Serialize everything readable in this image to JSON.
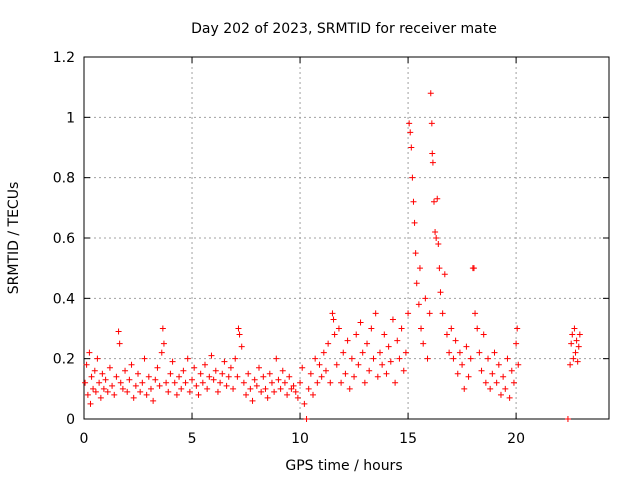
{
  "chart_data": {
    "type": "scatter",
    "title": "Day 202 of 2023, SRMTID for receiver mate",
    "xlabel": "GPS time / hours",
    "ylabel": "SRMTID / TECUs",
    "xlim": [
      0,
      24.3
    ],
    "ylim": [
      0,
      1.2
    ],
    "xticks": [
      0,
      5,
      10,
      15,
      20
    ],
    "yticks": [
      0,
      0.2,
      0.4,
      0.6,
      0.8,
      1,
      1.2
    ],
    "xtick_labels": [
      "0",
      "5",
      "10",
      "15",
      "20"
    ],
    "ytick_labels": [
      "0",
      "0.2",
      "0.4",
      "0.6",
      "0.8",
      "1",
      "1.2"
    ],
    "grid": true,
    "marker": "+",
    "color": "#ff0000",
    "series": [
      {
        "name": "SRMTID",
        "points": [
          [
            0.05,
            0.12
          ],
          [
            0.12,
            0.18
          ],
          [
            0.18,
            0.08
          ],
          [
            0.25,
            0.22
          ],
          [
            0.3,
            0.05
          ],
          [
            0.35,
            0.14
          ],
          [
            0.42,
            0.1
          ],
          [
            0.5,
            0.16
          ],
          [
            0.55,
            0.09
          ],
          [
            0.62,
            0.2
          ],
          [
            0.7,
            0.12
          ],
          [
            0.78,
            0.07
          ],
          [
            0.85,
            0.15
          ],
          [
            0.92,
            0.1
          ],
          [
            1.0,
            0.13
          ],
          [
            1.1,
            0.09
          ],
          [
            1.2,
            0.17
          ],
          [
            1.3,
            0.11
          ],
          [
            1.4,
            0.08
          ],
          [
            1.5,
            0.14
          ],
          [
            1.6,
            0.29
          ],
          [
            1.65,
            0.25
          ],
          [
            1.7,
            0.12
          ],
          [
            1.8,
            0.1
          ],
          [
            1.9,
            0.16
          ],
          [
            2.0,
            0.09
          ],
          [
            2.1,
            0.13
          ],
          [
            2.2,
            0.18
          ],
          [
            2.3,
            0.07
          ],
          [
            2.4,
            0.11
          ],
          [
            2.5,
            0.15
          ],
          [
            2.6,
            0.09
          ],
          [
            2.7,
            0.12
          ],
          [
            2.8,
            0.2
          ],
          [
            2.9,
            0.08
          ],
          [
            3.0,
            0.14
          ],
          [
            3.1,
            0.1
          ],
          [
            3.2,
            0.06
          ],
          [
            3.3,
            0.13
          ],
          [
            3.4,
            0.17
          ],
          [
            3.5,
            0.11
          ],
          [
            3.6,
            0.22
          ],
          [
            3.65,
            0.3
          ],
          [
            3.7,
            0.25
          ],
          [
            3.8,
            0.12
          ],
          [
            3.9,
            0.09
          ],
          [
            4.0,
            0.15
          ],
          [
            4.1,
            0.19
          ],
          [
            4.2,
            0.12
          ],
          [
            4.3,
            0.08
          ],
          [
            4.4,
            0.14
          ],
          [
            4.5,
            0.1
          ],
          [
            4.6,
            0.16
          ],
          [
            4.7,
            0.12
          ],
          [
            4.8,
            0.2
          ],
          [
            4.9,
            0.09
          ],
          [
            5.0,
            0.13
          ],
          [
            5.1,
            0.17
          ],
          [
            5.2,
            0.11
          ],
          [
            5.3,
            0.08
          ],
          [
            5.4,
            0.15
          ],
          [
            5.5,
            0.12
          ],
          [
            5.6,
            0.18
          ],
          [
            5.7,
            0.1
          ],
          [
            5.8,
            0.14
          ],
          [
            5.9,
            0.21
          ],
          [
            6.0,
            0.13
          ],
          [
            6.1,
            0.16
          ],
          [
            6.2,
            0.09
          ],
          [
            6.3,
            0.12
          ],
          [
            6.4,
            0.15
          ],
          [
            6.5,
            0.19
          ],
          [
            6.6,
            0.11
          ],
          [
            6.7,
            0.14
          ],
          [
            6.8,
            0.17
          ],
          [
            6.9,
            0.1
          ],
          [
            7.0,
            0.2
          ],
          [
            7.1,
            0.14
          ],
          [
            7.15,
            0.3
          ],
          [
            7.2,
            0.28
          ],
          [
            7.3,
            0.24
          ],
          [
            7.4,
            0.12
          ],
          [
            7.5,
            0.08
          ],
          [
            7.6,
            0.15
          ],
          [
            7.7,
            0.1
          ],
          [
            7.8,
            0.06
          ],
          [
            7.9,
            0.13
          ],
          [
            8.0,
            0.11
          ],
          [
            8.1,
            0.17
          ],
          [
            8.2,
            0.09
          ],
          [
            8.3,
            0.14
          ],
          [
            8.4,
            0.1
          ],
          [
            8.5,
            0.07
          ],
          [
            8.6,
            0.15
          ],
          [
            8.7,
            0.12
          ],
          [
            8.8,
            0.09
          ],
          [
            8.9,
            0.2
          ],
          [
            9.0,
            0.13
          ],
          [
            9.1,
            0.1
          ],
          [
            9.2,
            0.16
          ],
          [
            9.3,
            0.12
          ],
          [
            9.4,
            0.08
          ],
          [
            9.5,
            0.14
          ],
          [
            9.6,
            0.1
          ],
          [
            9.7,
            0.11
          ],
          [
            9.8,
            0.09
          ],
          [
            9.9,
            0.07
          ],
          [
            10.0,
            0.12
          ],
          [
            10.1,
            0.17
          ],
          [
            10.2,
            0.05
          ],
          [
            10.3,
            0.0
          ],
          [
            10.4,
            0.1
          ],
          [
            10.5,
            0.15
          ],
          [
            10.6,
            0.08
          ],
          [
            10.7,
            0.2
          ],
          [
            10.8,
            0.12
          ],
          [
            10.9,
            0.18
          ],
          [
            11.0,
            0.14
          ],
          [
            11.1,
            0.22
          ],
          [
            11.2,
            0.16
          ],
          [
            11.3,
            0.25
          ],
          [
            11.4,
            0.12
          ],
          [
            11.5,
            0.35
          ],
          [
            11.55,
            0.33
          ],
          [
            11.6,
            0.28
          ],
          [
            11.7,
            0.18
          ],
          [
            11.8,
            0.3
          ],
          [
            11.9,
            0.12
          ],
          [
            12.0,
            0.22
          ],
          [
            12.1,
            0.15
          ],
          [
            12.2,
            0.26
          ],
          [
            12.3,
            0.1
          ],
          [
            12.4,
            0.2
          ],
          [
            12.5,
            0.14
          ],
          [
            12.6,
            0.28
          ],
          [
            12.7,
            0.18
          ],
          [
            12.8,
            0.32
          ],
          [
            12.9,
            0.22
          ],
          [
            13.0,
            0.12
          ],
          [
            13.1,
            0.25
          ],
          [
            13.2,
            0.16
          ],
          [
            13.3,
            0.3
          ],
          [
            13.4,
            0.2
          ],
          [
            13.5,
            0.35
          ],
          [
            13.6,
            0.14
          ],
          [
            13.7,
            0.22
          ],
          [
            13.8,
            0.18
          ],
          [
            13.9,
            0.28
          ],
          [
            14.0,
            0.15
          ],
          [
            14.1,
            0.24
          ],
          [
            14.2,
            0.19
          ],
          [
            14.3,
            0.33
          ],
          [
            14.4,
            0.12
          ],
          [
            14.5,
            0.26
          ],
          [
            14.6,
            0.2
          ],
          [
            14.7,
            0.3
          ],
          [
            14.8,
            0.16
          ],
          [
            14.9,
            0.22
          ],
          [
            15.0,
            0.35
          ],
          [
            15.05,
            0.98
          ],
          [
            15.1,
            0.95
          ],
          [
            15.15,
            0.9
          ],
          [
            15.2,
            0.8
          ],
          [
            15.25,
            0.72
          ],
          [
            15.3,
            0.65
          ],
          [
            15.35,
            0.55
          ],
          [
            15.4,
            0.45
          ],
          [
            15.5,
            0.38
          ],
          [
            15.55,
            0.5
          ],
          [
            15.6,
            0.3
          ],
          [
            15.7,
            0.25
          ],
          [
            15.8,
            0.4
          ],
          [
            15.9,
            0.2
          ],
          [
            16.0,
            0.35
          ],
          [
            16.05,
            1.08
          ],
          [
            16.1,
            0.98
          ],
          [
            16.12,
            0.88
          ],
          [
            16.15,
            0.85
          ],
          [
            16.2,
            0.72
          ],
          [
            16.25,
            0.62
          ],
          [
            16.3,
            0.6
          ],
          [
            16.35,
            0.73
          ],
          [
            16.4,
            0.58
          ],
          [
            16.45,
            0.5
          ],
          [
            16.5,
            0.42
          ],
          [
            16.6,
            0.35
          ],
          [
            16.7,
            0.48
          ],
          [
            16.8,
            0.28
          ],
          [
            16.9,
            0.22
          ],
          [
            17.0,
            0.3
          ],
          [
            17.1,
            0.2
          ],
          [
            17.2,
            0.26
          ],
          [
            17.3,
            0.15
          ],
          [
            17.4,
            0.22
          ],
          [
            17.5,
            0.18
          ],
          [
            17.6,
            0.1
          ],
          [
            17.7,
            0.24
          ],
          [
            17.8,
            0.14
          ],
          [
            17.9,
            0.2
          ],
          [
            18.0,
            0.5
          ],
          [
            18.05,
            0.5
          ],
          [
            18.1,
            0.35
          ],
          [
            18.2,
            0.3
          ],
          [
            18.3,
            0.22
          ],
          [
            18.4,
            0.16
          ],
          [
            18.5,
            0.28
          ],
          [
            18.6,
            0.12
          ],
          [
            18.7,
            0.2
          ],
          [
            18.8,
            0.1
          ],
          [
            18.9,
            0.15
          ],
          [
            19.0,
            0.22
          ],
          [
            19.1,
            0.12
          ],
          [
            19.2,
            0.18
          ],
          [
            19.3,
            0.08
          ],
          [
            19.4,
            0.14
          ],
          [
            19.5,
            0.1
          ],
          [
            19.6,
            0.2
          ],
          [
            19.7,
            0.07
          ],
          [
            19.8,
            0.16
          ],
          [
            19.9,
            0.12
          ],
          [
            20.0,
            0.25
          ],
          [
            20.05,
            0.3
          ],
          [
            20.1,
            0.18
          ],
          [
            22.4,
            0.0
          ],
          [
            22.5,
            0.18
          ],
          [
            22.55,
            0.25
          ],
          [
            22.6,
            0.28
          ],
          [
            22.65,
            0.2
          ],
          [
            22.7,
            0.3
          ],
          [
            22.75,
            0.22
          ],
          [
            22.8,
            0.26
          ],
          [
            22.85,
            0.19
          ],
          [
            22.9,
            0.24
          ],
          [
            22.95,
            0.28
          ]
        ]
      }
    ]
  }
}
